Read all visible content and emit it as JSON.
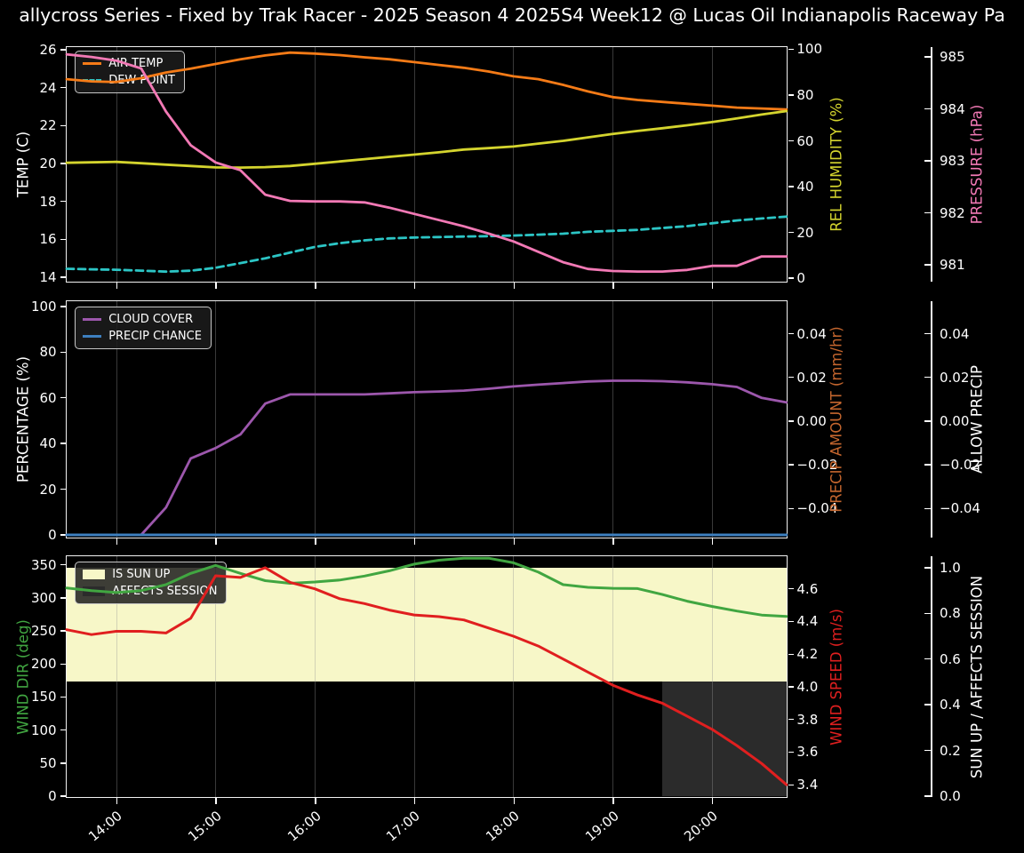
{
  "title": "allycross Series - Fixed by Trak Racer - 2025 Season 4 2025S4 Week12 @ Lucas Oil Indianapolis Raceway Pa",
  "colors": {
    "air_temp": "#f57b17",
    "dew_point": "#2cc5c5",
    "humidity": "#d4d42e",
    "pressure": "#f279b5",
    "cloud": "#9c57ac",
    "precip_chance": "#3d7fbf",
    "precip_amount": "#c5662e",
    "wind_dir": "#41a641",
    "wind_speed": "#e01f1f",
    "sun_fill": "#f7f7c8",
    "session_fill": "#2b2b2b",
    "text": "#ffffff"
  },
  "time_hours": [
    13.5,
    13.75,
    14.0,
    14.25,
    14.5,
    14.75,
    15.0,
    15.25,
    15.5,
    15.75,
    16.0,
    16.25,
    16.5,
    16.75,
    17.0,
    17.25,
    17.5,
    17.75,
    18.0,
    18.25,
    18.5,
    18.75,
    19.0,
    19.25,
    19.5,
    19.75,
    20.0,
    20.25,
    20.5,
    20.75
  ],
  "x_axis": {
    "ticks": [
      {
        "h": 14,
        "label": "14:00"
      },
      {
        "h": 15,
        "label": "15:00"
      },
      {
        "h": 16,
        "label": "16:00"
      },
      {
        "h": 17,
        "label": "17:00"
      },
      {
        "h": 18,
        "label": "18:00"
      },
      {
        "h": 19,
        "label": "19:00"
      },
      {
        "h": 20,
        "label": "20:00"
      }
    ]
  },
  "chart_data": [
    {
      "type": "line",
      "name": "temperature",
      "axes": {
        "left": {
          "label": "TEMP (C)",
          "color": "#ffffff",
          "range": [
            13.77,
            26.14
          ],
          "ticks": [
            {
              "v": 14,
              "l": "14"
            },
            {
              "v": 16,
              "l": "16"
            },
            {
              "v": 18,
              "l": "18"
            },
            {
              "v": 20,
              "l": "20"
            },
            {
              "v": 22,
              "l": "22"
            },
            {
              "v": 24,
              "l": "24"
            },
            {
              "v": 26,
              "l": "26"
            }
          ]
        },
        "right_inner": {
          "label": "REL HUMIDITY (%)",
          "color": "#d4d42e",
          "range": [
            -1.55,
            100.97
          ],
          "ticks": [
            {
              "v": 0,
              "l": "0"
            },
            {
              "v": 20,
              "l": "20"
            },
            {
              "v": 40,
              "l": "40"
            },
            {
              "v": 60,
              "l": "60"
            },
            {
              "v": 80,
              "l": "80"
            },
            {
              "v": 100,
              "l": "100"
            }
          ]
        },
        "right_outer": {
          "label": "PRESSURE (hPa)",
          "color": "#f279b5",
          "range": [
            980.675,
            985.19
          ],
          "ticks": [
            {
              "v": 981,
              "l": "981"
            },
            {
              "v": 982,
              "l": "982"
            },
            {
              "v": 983,
              "l": "983"
            },
            {
              "v": 984,
              "l": "984"
            },
            {
              "v": 985,
              "l": "985"
            }
          ]
        }
      },
      "series": [
        {
          "label": "AIR TEMP",
          "key": "air_temp",
          "axis": "left",
          "dash": false,
          "values": [
            24.45,
            24.33,
            24.3,
            24.5,
            24.8,
            25.0,
            25.25,
            25.5,
            25.7,
            25.85,
            25.8,
            25.72,
            25.6,
            25.5,
            25.35,
            25.2,
            25.05,
            24.85,
            24.6,
            24.45,
            24.15,
            23.8,
            23.5,
            23.35,
            23.25,
            23.15,
            23.05,
            22.95,
            22.9,
            22.85
          ]
        },
        {
          "label": "DEW POINT",
          "key": "dew_point",
          "axis": "left",
          "dash": true,
          "values": [
            14.45,
            14.42,
            14.4,
            14.35,
            14.3,
            14.35,
            14.5,
            14.75,
            15.0,
            15.3,
            15.6,
            15.8,
            15.95,
            16.05,
            16.1,
            16.12,
            16.15,
            16.17,
            16.2,
            16.25,
            16.3,
            16.4,
            16.45,
            16.5,
            16.6,
            16.7,
            16.85,
            17.0,
            17.1,
            17.2
          ]
        },
        {
          "label": "REL HUMIDITY",
          "key": "humidity",
          "axis": "right_inner",
          "dash": false,
          "values": [
            50.4,
            50.6,
            50.8,
            50.2,
            49.6,
            49.0,
            48.4,
            48.3,
            48.5,
            49.0,
            50.0,
            51.0,
            52.0,
            53.0,
            54.0,
            55.0,
            56.2,
            56.8,
            57.5,
            58.8,
            60.0,
            61.5,
            63.0,
            64.3,
            65.5,
            66.8,
            68.2,
            69.8,
            71.5,
            73.0
          ]
        },
        {
          "label": "PRESSURE",
          "key": "pressure",
          "axis": "right_outer",
          "dash": false,
          "values": [
            985.05,
            985.0,
            984.93,
            984.78,
            983.95,
            983.3,
            982.97,
            982.82,
            982.35,
            982.23,
            982.22,
            982.22,
            982.2,
            982.1,
            981.98,
            981.86,
            981.74,
            981.6,
            981.45,
            981.25,
            981.05,
            980.92,
            980.88,
            980.87,
            980.87,
            980.9,
            980.98,
            980.98,
            981.16,
            981.16
          ]
        }
      ],
      "legend": [
        {
          "label": "AIR TEMP",
          "key": "air_temp",
          "swatch": "line"
        },
        {
          "label": "DEW POINT",
          "key": "dew_point",
          "swatch": "dash"
        }
      ]
    },
    {
      "type": "line",
      "name": "precipitation",
      "axes": {
        "left": {
          "label": "PERCENTAGE (%)",
          "color": "#ffffff",
          "range": [
            -1.17,
            102.33
          ],
          "ticks": [
            {
              "v": 0,
              "l": "0"
            },
            {
              "v": 20,
              "l": "20"
            },
            {
              "v": 40,
              "l": "40"
            },
            {
              "v": 60,
              "l": "60"
            },
            {
              "v": 80,
              "l": "80"
            },
            {
              "v": 100,
              "l": "100"
            }
          ]
        },
        "right_inner": {
          "label": "PRECIP AMOUNT (mm/hr)",
          "color": "#c5662e",
          "range": [
            -0.0533,
            0.0549
          ],
          "ticks": [
            {
              "v": 0.04,
              "l": "0.04"
            },
            {
              "v": 0.02,
              "l": "0.02"
            },
            {
              "v": 0,
              "l": "0.00"
            },
            {
              "v": -0.02,
              "l": "−0.02"
            },
            {
              "v": -0.04,
              "l": "−0.04"
            }
          ]
        },
        "right_outer": {
          "label": "ALLOW PRECIP",
          "color": "#ffffff",
          "range": [
            -0.0533,
            0.0549
          ],
          "ticks": [
            {
              "v": 0.04,
              "l": "0.04"
            },
            {
              "v": 0.02,
              "l": "0.02"
            },
            {
              "v": 0,
              "l": "0.00"
            },
            {
              "v": -0.02,
              "l": "−0.02"
            },
            {
              "v": -0.04,
              "l": "−0.04"
            }
          ]
        }
      },
      "series": [
        {
          "label": "CLOUD COVER",
          "key": "cloud",
          "axis": "left",
          "dash": false,
          "values": [
            0,
            0,
            0,
            0,
            12,
            33.5,
            38,
            44,
            57.5,
            61.5,
            61.5,
            61.5,
            61.5,
            62,
            62.5,
            62.8,
            63.2,
            64,
            65,
            65.8,
            66.5,
            67.2,
            67.5,
            67.5,
            67.3,
            66.8,
            66,
            64.8,
            60,
            58
          ]
        },
        {
          "label": "PRECIP CHANCE",
          "key": "precip_chance",
          "axis": "left",
          "dash": false,
          "values": [
            0,
            0,
            0,
            0,
            0,
            0,
            0,
            0,
            0,
            0,
            0,
            0,
            0,
            0,
            0,
            0,
            0,
            0,
            0,
            0,
            0,
            0,
            0,
            0,
            0,
            0,
            0,
            0,
            0,
            0
          ]
        }
      ],
      "legend": [
        {
          "label": "CLOUD COVER",
          "key": "cloud",
          "swatch": "line"
        },
        {
          "label": "PRECIP CHANCE",
          "key": "precip_chance",
          "swatch": "line"
        }
      ]
    },
    {
      "type": "line",
      "name": "wind",
      "axes": {
        "left": {
          "label": "WIND DIR (deg)",
          "color": "#41a641",
          "range": [
            -1.34,
            363.0
          ],
          "ticks": [
            {
              "v": 0,
              "l": "0"
            },
            {
              "v": 50,
              "l": "50"
            },
            {
              "v": 100,
              "l": "100"
            },
            {
              "v": 150,
              "l": "150"
            },
            {
              "v": 200,
              "l": "200"
            },
            {
              "v": 250,
              "l": "250"
            },
            {
              "v": 300,
              "l": "300"
            },
            {
              "v": 350,
              "l": "350"
            }
          ]
        },
        "right_inner": {
          "label": "WIND SPEED (m/s)",
          "color": "#e01f1f",
          "range": [
            3.325,
            4.8
          ],
          "ticks": [
            {
              "v": 4.6,
              "l": "4.6"
            },
            {
              "v": 4.4,
              "l": "4.4"
            },
            {
              "v": 4.2,
              "l": "4.2"
            },
            {
              "v": 4.0,
              "l": "4.0"
            },
            {
              "v": 3.8,
              "l": "3.8"
            },
            {
              "v": 3.6,
              "l": "3.6"
            },
            {
              "v": 3.4,
              "l": "3.4"
            }
          ]
        },
        "right_outer": {
          "label": "SUN UP / AFFECTS SESSION",
          "color": "#ffffff",
          "range": [
            -0.004,
            1.0506
          ],
          "ticks": [
            {
              "v": 1.0,
              "l": "1.0"
            },
            {
              "v": 0.8,
              "l": "0.8"
            },
            {
              "v": 0.6,
              "l": "0.6"
            },
            {
              "v": 0.4,
              "l": "0.4"
            },
            {
              "v": 0.2,
              "l": "0.2"
            },
            {
              "v": 0.0,
              "l": "0.0"
            }
          ]
        }
      },
      "fills": [
        {
          "label": "IS SUN UP",
          "key": "sun_fill",
          "axis": "right_outer",
          "x": [
            13.5,
            20.75
          ],
          "y": [
            0.5,
            1.0
          ]
        },
        {
          "label": "AFFECTS SESSION",
          "key": "session_fill",
          "axis": "right_outer",
          "x": [
            19.5,
            20.75
          ],
          "y": [
            0.0,
            0.5
          ]
        }
      ],
      "series": [
        {
          "label": "WIND DIR",
          "key": "wind_dir",
          "axis": "left",
          "dash": false,
          "values": [
            315,
            311,
            308,
            311,
            320,
            337,
            349,
            337,
            326,
            322,
            324,
            327,
            333,
            341,
            351,
            357,
            360,
            360,
            353,
            339,
            320,
            316,
            314.5,
            314,
            305,
            295,
            287,
            280,
            274,
            272
          ]
        },
        {
          "label": "WIND SPEED",
          "key": "wind_speed",
          "axis": "right_inner",
          "dash": false,
          "values": [
            4.35,
            4.32,
            4.34,
            4.34,
            4.33,
            4.42,
            4.68,
            4.67,
            4.73,
            4.64,
            4.6,
            4.54,
            4.51,
            4.47,
            4.44,
            4.43,
            4.41,
            4.36,
            4.31,
            4.25,
            4.17,
            4.09,
            4.01,
            3.95,
            3.9,
            3.82,
            3.74,
            3.64,
            3.53,
            3.4
          ]
        }
      ],
      "legend": [
        {
          "label": "IS SUN UP",
          "key": "sun_fill",
          "swatch": "patch"
        },
        {
          "label": "AFFECTS SESSION",
          "key": "session_fill",
          "swatch": "patch"
        }
      ]
    }
  ]
}
